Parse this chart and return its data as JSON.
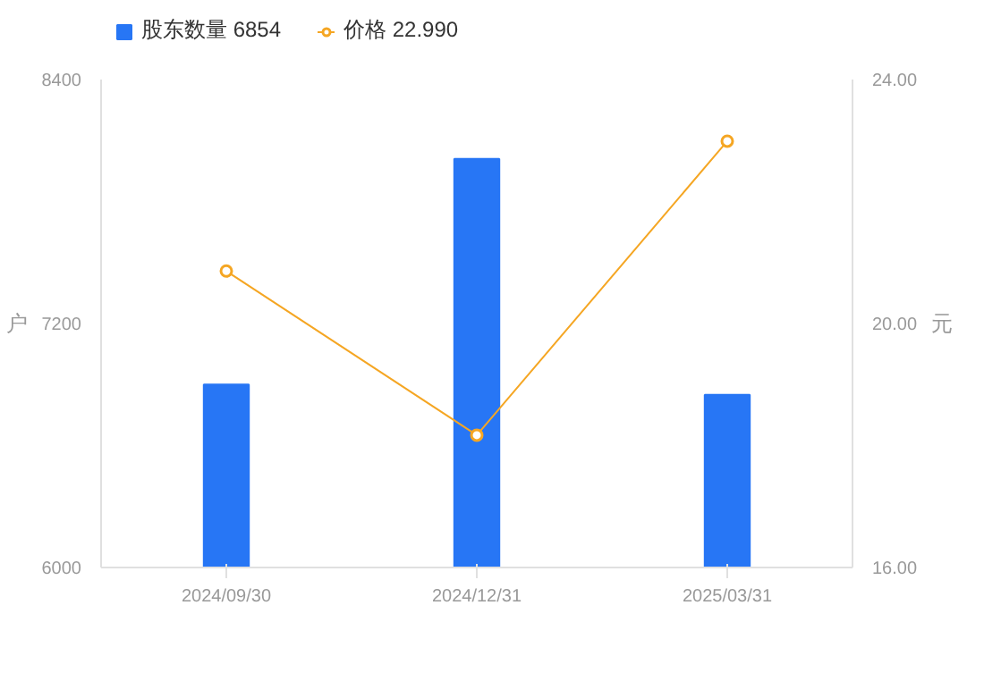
{
  "chart_data": {
    "type": "bar",
    "categories": [
      "2024/09/30",
      "2024/12/31",
      "2025/03/31"
    ],
    "series": [
      {
        "name": "股东数量 6854",
        "color": "#2776f5",
        "values": [
          6900,
          8010,
          6850
        ]
      },
      {
        "name": "价格 22.990",
        "type": "line",
        "axis": "y2",
        "color": "#f5a623",
        "marker": "circle",
        "values": [
          20.86,
          18.17,
          22.99
        ]
      }
    ],
    "ylabel": "户",
    "y2label": "元",
    "ylim": [
      6000,
      8400
    ],
    "yticks": [
      6000,
      7200,
      8400
    ],
    "y2lim": [
      16,
      24
    ],
    "y2ticks": [
      {
        "value": 16,
        "label": "16.00"
      },
      {
        "value": 20,
        "label": "20.00"
      },
      {
        "value": 24,
        "label": "24.00"
      }
    ],
    "grid": false,
    "legend": "top left"
  }
}
